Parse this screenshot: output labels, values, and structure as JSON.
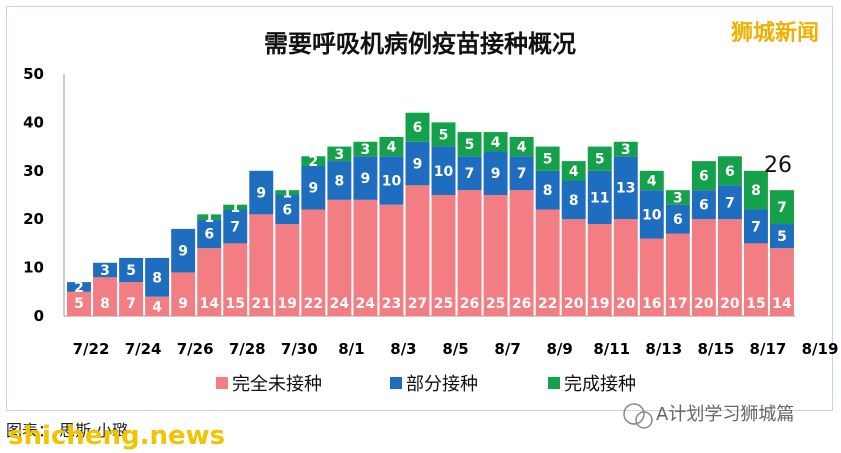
{
  "watermark": "狮城新闻",
  "bottom_text": "图表：  思斯·小璐",
  "site_mark": "shicheng.news",
  "wechat_mark": "A计划学习狮城篇",
  "chart_data": {
    "type": "bar",
    "stacked": true,
    "title": "需要呼吸机病例疫苗接种概况",
    "ylim": [
      0,
      50
    ],
    "yticks": [
      "0",
      "10",
      "20",
      "30",
      "40",
      "50"
    ],
    "xtick_labels": [
      "7/22",
      "7/24",
      "7/26",
      "7/28",
      "7/30",
      "8/1",
      "8/3",
      "8/5",
      "8/7",
      "8/9",
      "8/11",
      "8/13",
      "8/15",
      "8/17",
      "8/19"
    ],
    "categories": [
      "7/22",
      "7/23",
      "7/24",
      "7/25",
      "7/26",
      "7/27",
      "7/28",
      "7/29",
      "7/30",
      "7/31",
      "8/1",
      "8/2",
      "8/3",
      "8/4",
      "8/5",
      "8/6",
      "8/7",
      "8/8",
      "8/9",
      "8/10",
      "8/11",
      "8/12",
      "8/13",
      "8/14",
      "8/15",
      "8/16",
      "8/17",
      "8/18"
    ],
    "series": [
      {
        "name": "完全未接种",
        "color": "#f27e84",
        "values": [
          5,
          8,
          7,
          4,
          9,
          14,
          15,
          21,
          19,
          22,
          24,
          24,
          23,
          27,
          25,
          26,
          25,
          26,
          22,
          20,
          19,
          20,
          16,
          17,
          20,
          20,
          15,
          14
        ]
      },
      {
        "name": "部分接种",
        "color": "#1f6dbf",
        "values": [
          2,
          3,
          5,
          8,
          9,
          6,
          7,
          9,
          6,
          9,
          8,
          9,
          10,
          9,
          10,
          7,
          9,
          7,
          8,
          8,
          11,
          13,
          10,
          6,
          6,
          7,
          7,
          5
        ]
      },
      {
        "name": "完成接种",
        "color": "#15a04a",
        "values": [
          0,
          0,
          0,
          0,
          0,
          1,
          1,
          0,
          1,
          2,
          3,
          3,
          4,
          6,
          5,
          5,
          4,
          4,
          5,
          4,
          5,
          3,
          4,
          3,
          6,
          6,
          8,
          7
        ]
      }
    ],
    "annotation": "26",
    "legend_position": "bottom"
  }
}
